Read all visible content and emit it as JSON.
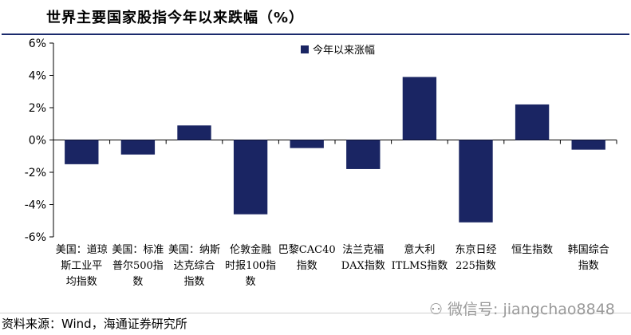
{
  "title": "世界主要国家股指今年以来跌幅（%）",
  "source": "资料来源：Wind，海通证券研究所",
  "watermark": "微信号: jiangchao8848",
  "colors": {
    "bar": "#1a2563",
    "axis": "#000000"
  },
  "chart_data": {
    "type": "bar",
    "categories": [
      [
        "美国：道琼",
        "斯工业平",
        "均指数"
      ],
      [
        "美国：标准",
        "普尔500指",
        "数"
      ],
      [
        "美国：纳斯",
        "达克综合",
        "指数"
      ],
      [
        "伦敦金融",
        "时报100指",
        "数"
      ],
      [
        "巴黎CAC40",
        "指数"
      ],
      [
        "法兰克福",
        "DAX指数"
      ],
      [
        "意大利",
        "ITLMS指数"
      ],
      [
        "东京日经",
        "225指数"
      ],
      [
        "恒生指数"
      ],
      [
        "韩国综合",
        "指数"
      ]
    ],
    "series": [
      {
        "name": "今年以来涨幅",
        "values": [
          -1.5,
          -0.9,
          0.9,
          -4.6,
          -0.5,
          -1.8,
          3.9,
          -5.1,
          2.2,
          -0.6
        ]
      }
    ],
    "ylim": [
      -6,
      6
    ],
    "yticks": [
      6,
      4,
      2,
      0,
      -2,
      -4,
      -6
    ],
    "ytick_labels": [
      "6%",
      "4%",
      "2%",
      "0%",
      "-2%",
      "-4%",
      "-6%"
    ],
    "legend_position": "top-center",
    "grid": false
  }
}
